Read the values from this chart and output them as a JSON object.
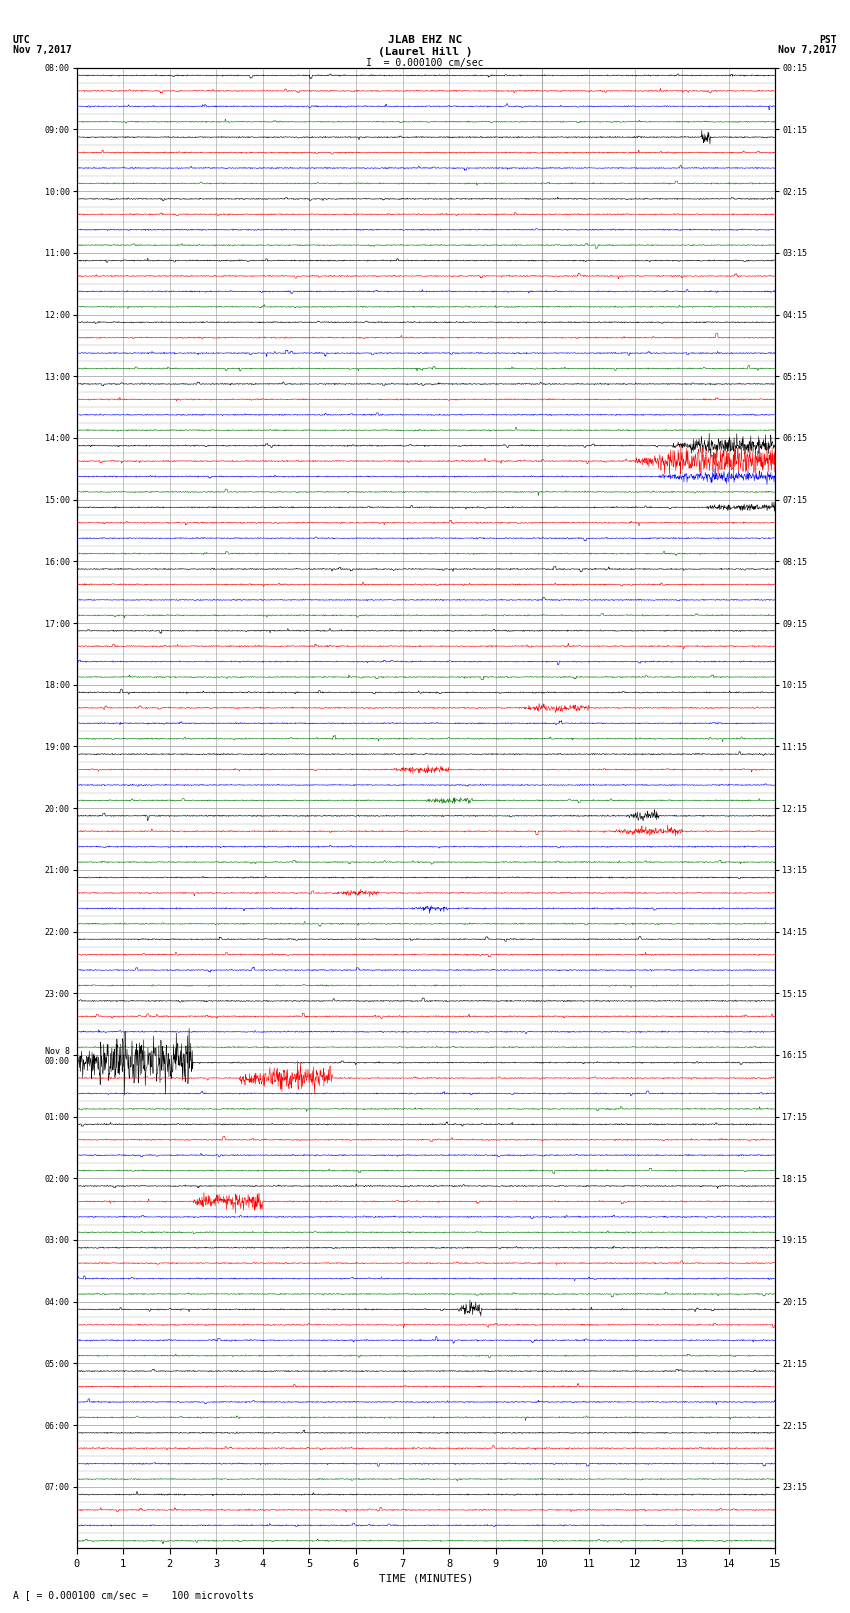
{
  "title_line1": "JLAB EHZ NC",
  "title_line2": "(Laurel Hill )",
  "scale_text": "I  = 0.000100 cm/sec",
  "left_label_top": "UTC",
  "left_label_date": "Nov 7,2017",
  "right_label_top": "PST",
  "right_label_date": "Nov 7,2017",
  "bottom_label": "TIME (MINUTES)",
  "footer_text": "A [ = 0.000100 cm/sec =    100 microvolts",
  "xlabel_ticks": [
    0,
    1,
    2,
    3,
    4,
    5,
    6,
    7,
    8,
    9,
    10,
    11,
    12,
    13,
    14,
    15
  ],
  "utc_hour_labels": [
    "08:00",
    "09:00",
    "10:00",
    "11:00",
    "12:00",
    "13:00",
    "14:00",
    "15:00",
    "16:00",
    "17:00",
    "18:00",
    "19:00",
    "20:00",
    "21:00",
    "22:00",
    "23:00",
    "Nov 8\n00:00",
    "01:00",
    "02:00",
    "03:00",
    "04:00",
    "05:00",
    "06:00",
    "07:00"
  ],
  "pst_hour_labels": [
    "00:15",
    "01:15",
    "02:15",
    "03:15",
    "04:15",
    "05:15",
    "06:15",
    "07:15",
    "08:15",
    "09:15",
    "10:15",
    "11:15",
    "12:15",
    "13:15",
    "14:15",
    "15:15",
    "16:15",
    "17:15",
    "18:15",
    "19:15",
    "20:15",
    "21:15",
    "22:15",
    "23:15"
  ],
  "num_hours": 24,
  "traces_per_hour": 4,
  "colors": [
    "black",
    "red",
    "blue",
    "green"
  ],
  "background_color": "white",
  "grid_color": "#aaaaaa",
  "fig_width": 8.5,
  "fig_height": 16.13,
  "noise_base": 0.018,
  "events": [
    {
      "hour": 6,
      "trace": 0,
      "xstart": 12.8,
      "xend": 15.0,
      "amp": 0.28,
      "color": "black"
    },
    {
      "hour": 6,
      "trace": 1,
      "xstart": 12.0,
      "xend": 15.0,
      "amp": 0.45,
      "color": "red"
    },
    {
      "hour": 6,
      "trace": 2,
      "xstart": 12.5,
      "xend": 15.0,
      "amp": 0.15,
      "color": "blue"
    },
    {
      "hour": 7,
      "trace": 0,
      "xstart": 13.5,
      "xend": 15.0,
      "amp": 0.12,
      "color": "black"
    },
    {
      "hour": 1,
      "trace": 0,
      "xstart": 13.4,
      "xend": 13.6,
      "amp": 0.25,
      "color": "black"
    },
    {
      "hour": 10,
      "trace": 1,
      "xstart": 9.5,
      "xend": 11.0,
      "amp": 0.1,
      "color": "blue"
    },
    {
      "hour": 11,
      "trace": 1,
      "xstart": 6.8,
      "xend": 8.0,
      "amp": 0.1,
      "color": "blue"
    },
    {
      "hour": 11,
      "trace": 3,
      "xstart": 7.5,
      "xend": 8.5,
      "amp": 0.1,
      "color": "green"
    },
    {
      "hour": 12,
      "trace": 1,
      "xstart": 11.5,
      "xend": 13.0,
      "amp": 0.12,
      "color": "blue"
    },
    {
      "hour": 12,
      "trace": 0,
      "xstart": 11.8,
      "xend": 12.5,
      "amp": 0.12,
      "color": "black"
    },
    {
      "hour": 13,
      "trace": 1,
      "xstart": 5.5,
      "xend": 6.5,
      "amp": 0.08,
      "color": "black"
    },
    {
      "hour": 13,
      "trace": 2,
      "xstart": 7.2,
      "xend": 8.0,
      "amp": 0.08,
      "color": "black"
    },
    {
      "hour": 16,
      "trace": 0,
      "xstart": 0.0,
      "xend": 2.5,
      "amp": 0.8,
      "color": "blue"
    },
    {
      "hour": 16,
      "trace": 1,
      "xstart": 3.5,
      "xend": 5.5,
      "amp": 0.35,
      "color": "red"
    },
    {
      "hour": 18,
      "trace": 1,
      "xstart": 2.5,
      "xend": 4.0,
      "amp": 0.25,
      "color": "red"
    },
    {
      "hour": 18,
      "trace": 1,
      "xstart": 2.6,
      "xend": 3.0,
      "amp": 0.18,
      "color": "blue"
    },
    {
      "hour": 20,
      "trace": 0,
      "xstart": 8.2,
      "xend": 8.7,
      "amp": 0.22,
      "color": "black"
    }
  ]
}
